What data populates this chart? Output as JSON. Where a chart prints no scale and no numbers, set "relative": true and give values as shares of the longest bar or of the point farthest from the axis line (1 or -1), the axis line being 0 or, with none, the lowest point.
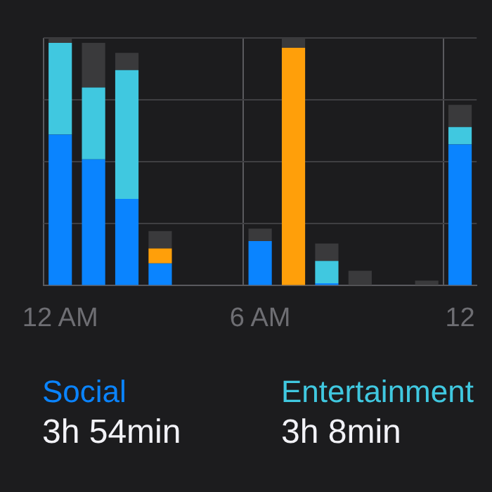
{
  "chart_data": {
    "type": "bar",
    "stacked": true,
    "relative": true,
    "grid": true,
    "legend": "bottom",
    "categories": [
      "12 AM",
      null,
      null,
      null,
      null,
      null,
      "6 AM",
      null,
      null,
      null,
      null,
      null,
      "12"
    ],
    "series": [
      {
        "name": "Social",
        "color": "#0a84ff",
        "values": [
          0.61,
          0.51,
          0.35,
          0.09,
          null,
          null,
          0.18,
          null,
          0.01,
          null,
          null,
          null,
          0.57
        ]
      },
      {
        "name": "Entertainment",
        "color": "#40c8e0",
        "values": [
          0.37,
          0.29,
          0.52,
          null,
          null,
          null,
          null,
          null,
          0.09,
          null,
          null,
          null,
          0.07
        ]
      },
      {
        "color": "#ff9f0a",
        "values": [
          null,
          null,
          null,
          0.06,
          null,
          null,
          null,
          0.96,
          null,
          null,
          null,
          null,
          null
        ]
      },
      {
        "color": "#3a3a3c",
        "values": [
          0.02,
          0.18,
          0.07,
          0.07,
          null,
          null,
          0.05,
          0.04,
          0.07,
          0.06,
          null,
          0.02,
          0.09
        ]
      }
    ],
    "annotations": [
      "3h 54min",
      "3h 8min"
    ]
  }
}
